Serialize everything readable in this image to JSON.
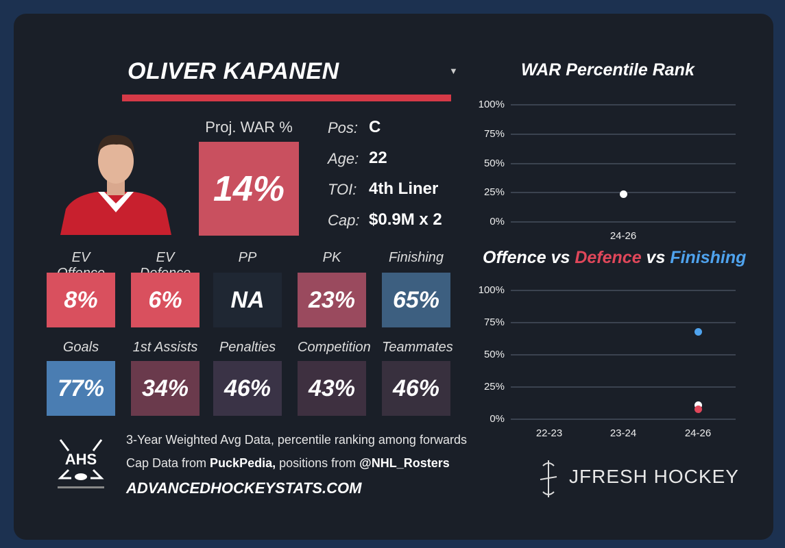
{
  "player": {
    "name": "OLIVER KAPANEN",
    "proj_war_label": "Proj. WAR %",
    "proj_war": "14%",
    "proj_war_color": "#c9505f"
  },
  "info": [
    {
      "label": "Pos:",
      "value": "C"
    },
    {
      "label": "Age:",
      "value": "22"
    },
    {
      "label": "TOI:",
      "value": "4th Liner"
    },
    {
      "label": "Cap:",
      "value": "$0.9M x 2"
    }
  ],
  "tiles": [
    {
      "label": "EV Offence",
      "value": "8%",
      "color": "#d9505e"
    },
    {
      "label": "EV Defence",
      "value": "6%",
      "color": "#d9505e"
    },
    {
      "label": "PP",
      "value": "NA",
      "color": "#1f2733"
    },
    {
      "label": "PK",
      "value": "23%",
      "color": "#9a4a5e"
    },
    {
      "label": "Finishing",
      "value": "65%",
      "color": "#3d5f80"
    },
    {
      "label": "Goals",
      "value": "77%",
      "color": "#4a7db2"
    },
    {
      "label": "1st Assists",
      "value": "34%",
      "color": "#6a3a4c"
    },
    {
      "label": "Penalties",
      "value": "46%",
      "color": "#3a3346"
    },
    {
      "label": "Competition",
      "value": "43%",
      "color": "#3e3040"
    },
    {
      "label": "Teammates",
      "value": "46%",
      "color": "#38303e"
    }
  ],
  "footer": {
    "line1": "3-Year Weighted Avg Data, percentile ranking among forwards",
    "line2_a": "Cap Data from ",
    "line2_b": "PuckPedia,",
    "line2_c": " positions from ",
    "line2_d": "@NHL_Rosters",
    "url": "ADVANCEDHOCKEYSTATS.COM",
    "logo_text": "AHS",
    "brand": "JFRESH HOCKEY"
  },
  "chart_data": [
    {
      "type": "scatter",
      "title": "WAR Percentile Rank",
      "categories": [
        "24-26"
      ],
      "yticks": [
        "100%",
        "75%",
        "50%",
        "25%",
        "0%"
      ],
      "ylim": [
        0,
        100
      ],
      "series": [
        {
          "values": [
            24
          ],
          "color": "#ffffff"
        }
      ]
    },
    {
      "type": "scatter",
      "title_parts": [
        "Offence",
        " vs ",
        "Defence",
        " vs ",
        "Finishing"
      ],
      "categories": [
        "22-23",
        "23-24",
        "24-26"
      ],
      "yticks": [
        "100%",
        "75%",
        "50%",
        "25%",
        "0%"
      ],
      "ylim": [
        0,
        100
      ],
      "series": [
        {
          "name": "Offence",
          "values": [
            null,
            null,
            11
          ],
          "color": "#ffffff"
        },
        {
          "name": "Defence",
          "values": [
            null,
            null,
            8
          ],
          "color": "#e0475a"
        },
        {
          "name": "Finishing",
          "values": [
            null,
            null,
            68
          ],
          "color": "#4fa3ee"
        }
      ]
    }
  ]
}
